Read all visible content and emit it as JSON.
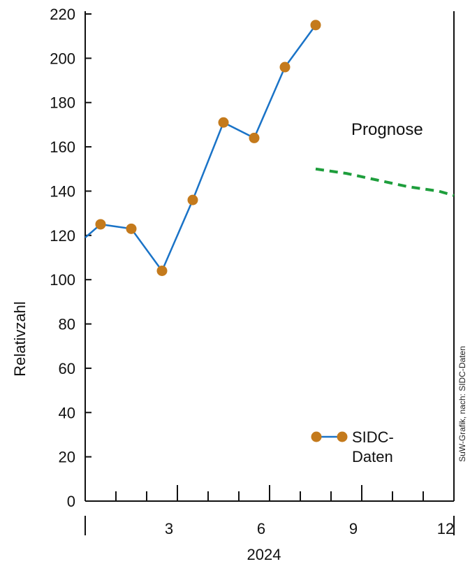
{
  "chart_data": {
    "type": "line",
    "ylabel": "Relativzahl",
    "xlabel": "2024",
    "ylim": [
      0,
      220
    ],
    "xlim": [
      0,
      12
    ],
    "yticks": [
      0,
      20,
      40,
      60,
      80,
      100,
      120,
      140,
      160,
      180,
      200,
      220
    ],
    "xtick_labels": [
      {
        "x": 3,
        "label": "3"
      },
      {
        "x": 6,
        "label": "6"
      },
      {
        "x": 9,
        "label": "9"
      },
      {
        "x": 12,
        "label": "12"
      }
    ],
    "series": [
      {
        "name": "SIDC-Daten",
        "color": "#1a73c7",
        "marker_color": "#c47a1c",
        "x": [
          0.5,
          1.5,
          2.5,
          3.5,
          4.5,
          5.5,
          6.5,
          7.5
        ],
        "y": [
          125,
          123,
          104,
          136,
          171,
          164,
          196,
          215
        ],
        "start_point": {
          "x": 0,
          "y": 119
        }
      },
      {
        "name": "Prognose",
        "color": "#1e9e3c",
        "style": "dashed",
        "x": [
          7.5,
          8.5,
          9.5,
          10.5,
          11.5,
          12
        ],
        "y": [
          150,
          148,
          145,
          142,
          140,
          138
        ]
      }
    ],
    "annotations": [
      {
        "text": "Prognose"
      }
    ],
    "legend": {
      "placement": "bottom-right",
      "label_line1": "SIDC-",
      "label_line2": "Daten"
    },
    "credit": "SuW-Grafik, nach: SIDC-Daten",
    "grid": false
  }
}
